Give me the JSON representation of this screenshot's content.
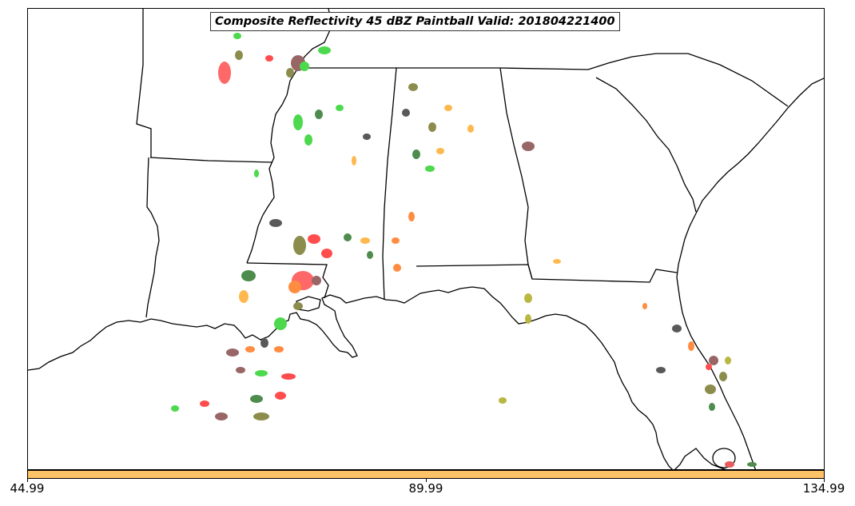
{
  "title": "Composite Reflectivity 45 dBZ Paintball Valid: 201804221400",
  "colorbar": {
    "color": "#ffc266",
    "tick_labels": [
      "44.99",
      "89.99",
      "134.99"
    ]
  },
  "map": {
    "region": "Southeastern United States and northern Gulf of Mexico",
    "projection": "Lambert conformal",
    "borders": "state boundaries and coastline in black",
    "land_color": "#ffffff",
    "water_color": "#ffffff"
  },
  "paintball_colors": [
    "#ff4d4d",
    "#4dd94d",
    "#8c8c4d",
    "#996666",
    "#ffb84d",
    "#ff8c40",
    "#4d8c4d",
    "#595959",
    "#b8b840",
    "#e65c5c"
  ]
}
